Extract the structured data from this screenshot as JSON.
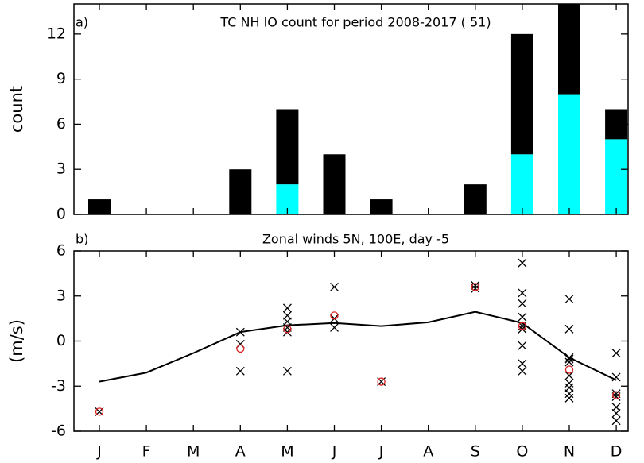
{
  "chart_data": [
    {
      "type": "bar",
      "stacked": true,
      "panel_label": "a)",
      "title": "TC NH IO count for period 2008-2017 ( 51)",
      "ylabel": "count",
      "ylim": [
        0,
        14
      ],
      "yticks": [
        0,
        3,
        6,
        9,
        12
      ],
      "series": [
        {
          "color": "#00ffff",
          "values": [
            0,
            0,
            0,
            0,
            2,
            0,
            0,
            0,
            0,
            4,
            8,
            5
          ]
        },
        {
          "color": "#000000",
          "values": [
            1,
            0,
            0,
            3,
            5,
            4,
            1,
            0,
            2,
            8,
            6,
            2
          ]
        }
      ]
    },
    {
      "type": "line",
      "panel_label": "b)",
      "title": "Zonal winds 5N, 100E, day -5",
      "ylabel": "(m/s)",
      "categories": [
        "J",
        "F",
        "M",
        "A",
        "M",
        "J",
        "J",
        "A",
        "S",
        "O",
        "N",
        "D"
      ],
      "ylim": [
        -6,
        6
      ],
      "yticks": [
        6,
        3,
        0,
        -3,
        -6
      ],
      "zero_line": true,
      "series": [
        {
          "color": "#000000",
          "values": [
            -2.7,
            -2.1,
            -0.8,
            0.6,
            1.05,
            1.2,
            1.0,
            1.25,
            1.95,
            1.2,
            -1.1,
            -2.6
          ]
        }
      ],
      "crosses": {
        "color": "#000000",
        "values": [
          [
            -4.7
          ],
          [],
          [],
          [
            0.6,
            -0.2,
            -2.0
          ],
          [
            2.2,
            1.7,
            1.3,
            0.9,
            0.6,
            -2.0
          ],
          [
            3.6,
            1.5,
            0.9
          ],
          [
            -2.7
          ],
          [],
          [
            3.7,
            3.5
          ],
          [
            5.2,
            3.2,
            2.5,
            1.6,
            1.0,
            0.8,
            -0.3,
            -1.5,
            -2.0
          ],
          [
            2.8,
            0.8,
            -1.1,
            -1.2,
            -1.4,
            -2.3,
            -2.8,
            -3.1,
            -3.5,
            -3.8
          ],
          [
            -0.8,
            -2.4,
            -3.5,
            -3.7,
            -4.4,
            -4.8,
            -5.3
          ]
        ]
      },
      "circles": {
        "color": "#dd2222",
        "values": [
          -4.7,
          null,
          null,
          -0.5,
          0.8,
          1.7,
          -2.7,
          null,
          3.6,
          1.0,
          -1.9,
          -3.6
        ]
      }
    }
  ]
}
